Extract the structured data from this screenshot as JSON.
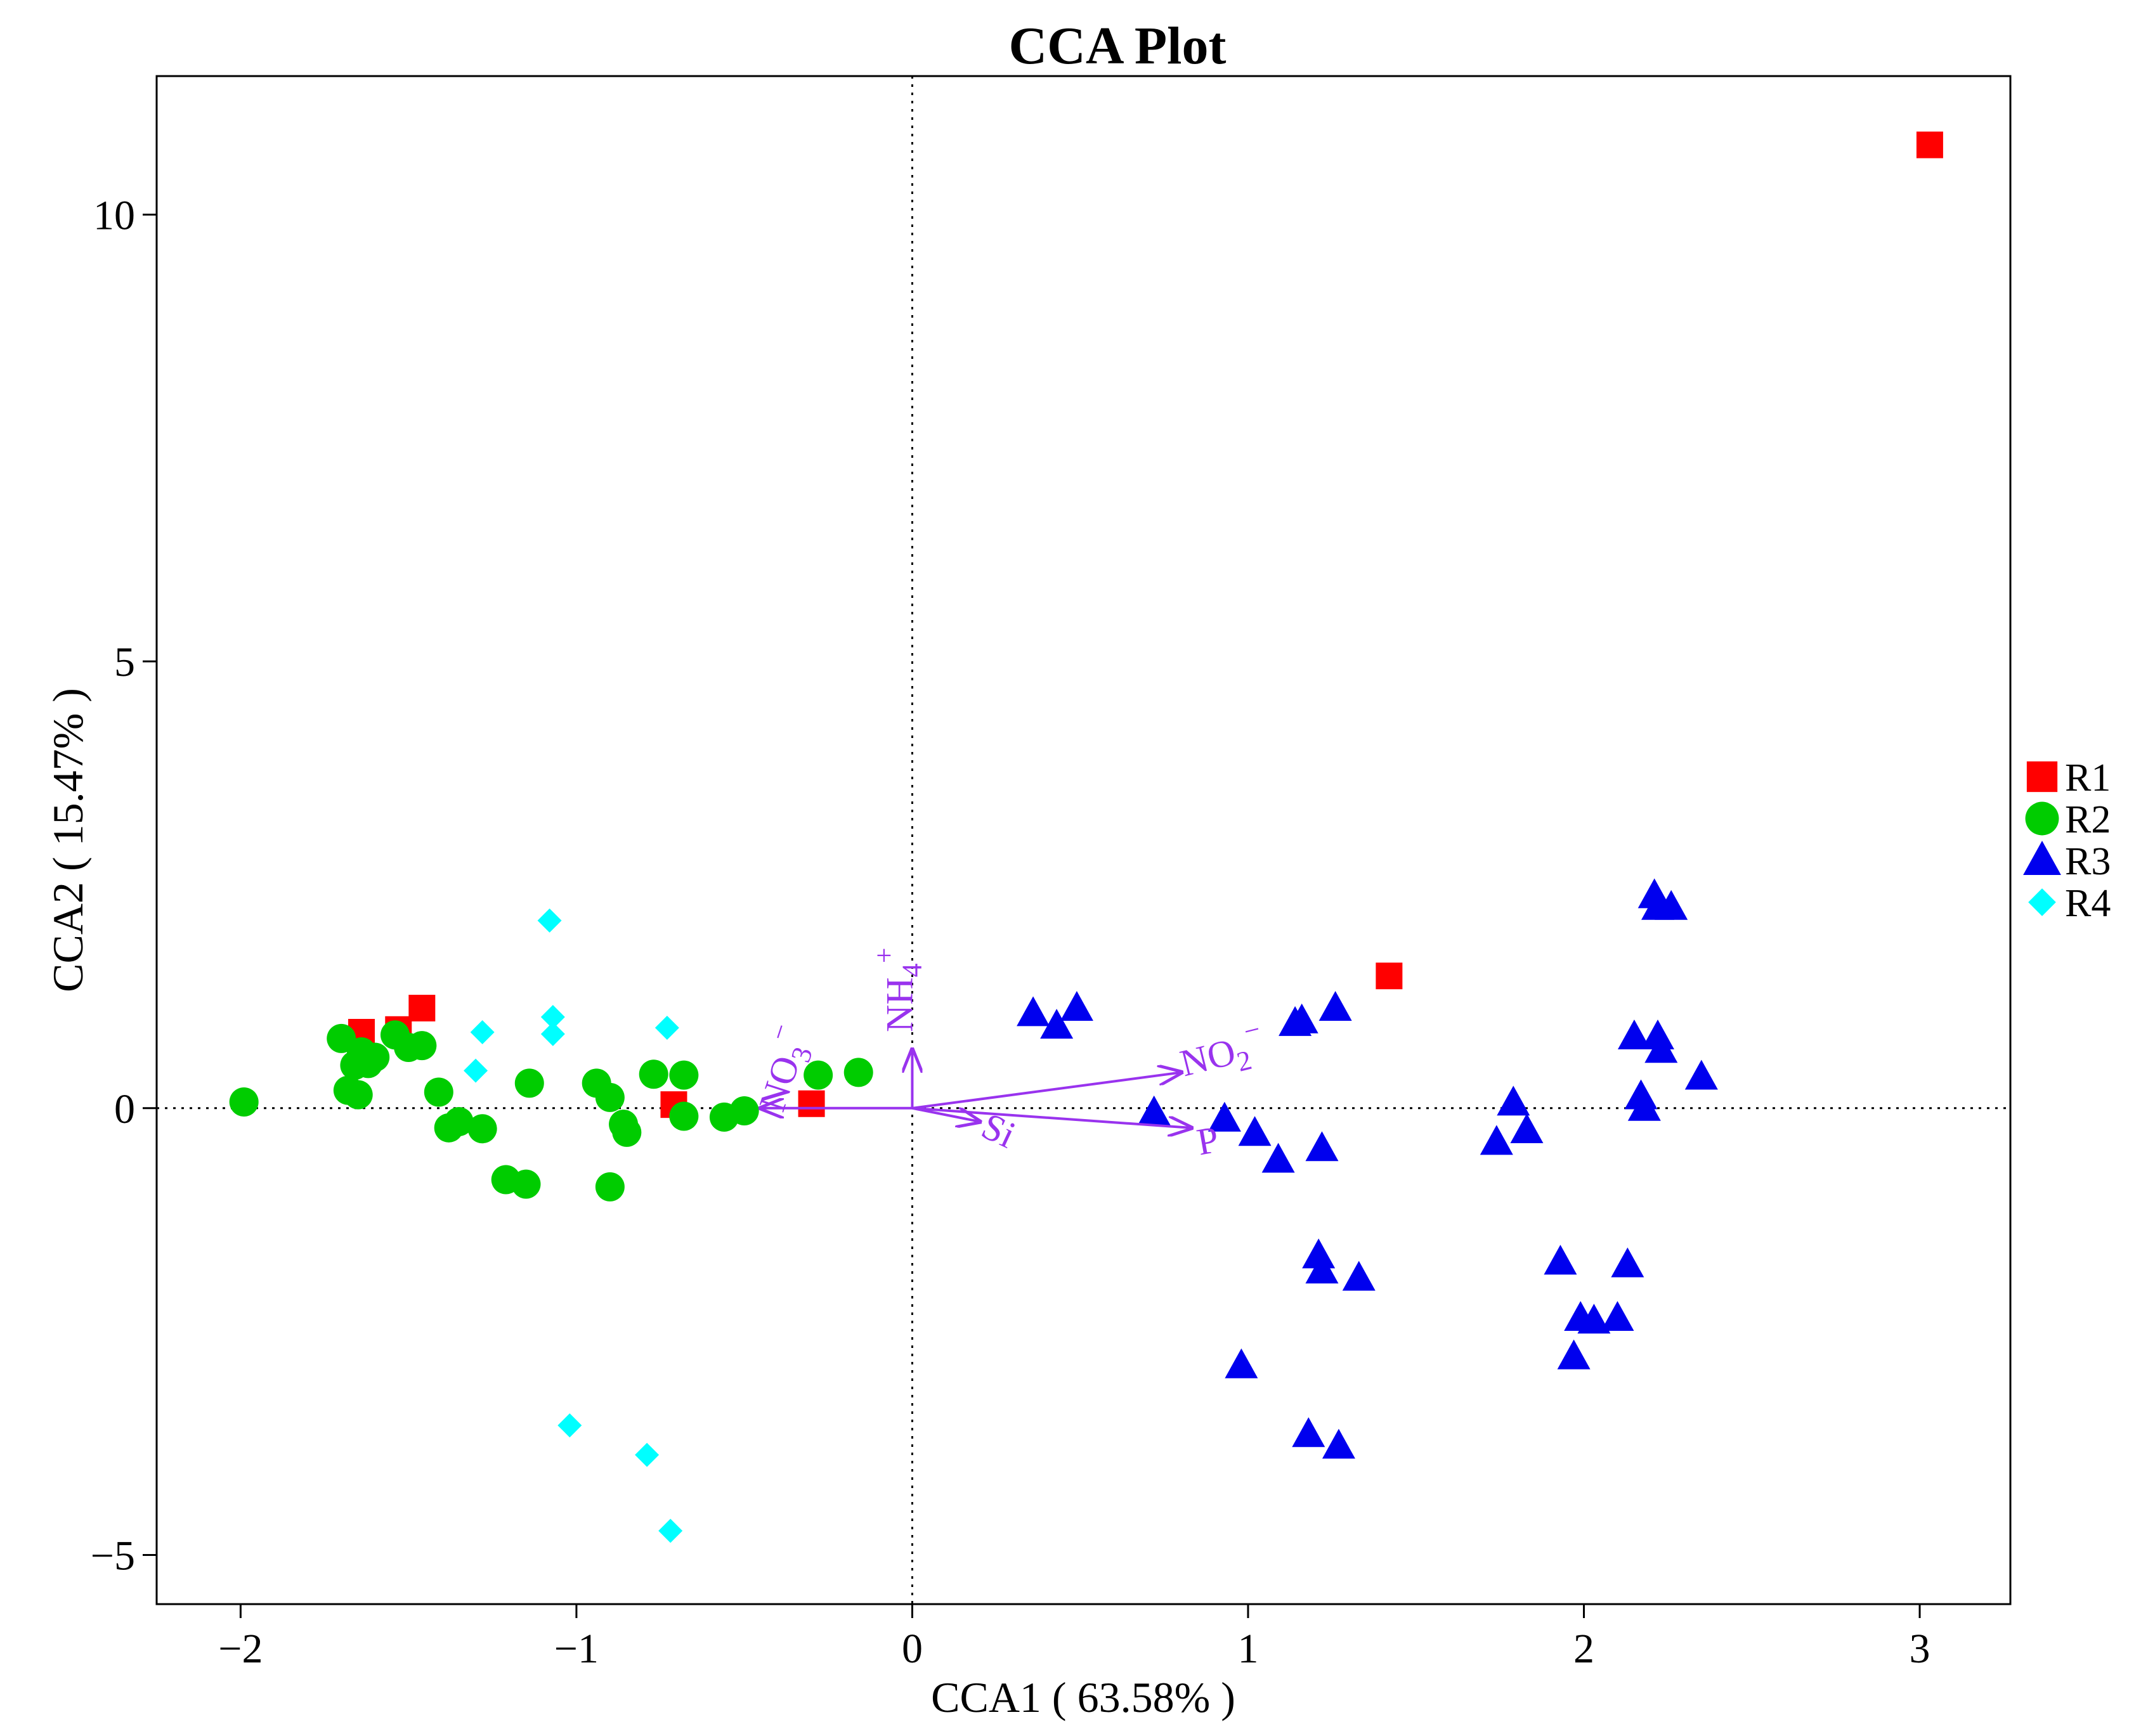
{
  "chart_data": {
    "type": "scatter",
    "title": "CCA Plot",
    "xlabel": "CCA1 ( 63.58% )",
    "ylabel": "CCA2 ( 15.47% )",
    "xlim": [
      -2.25,
      3.27
    ],
    "ylim": [
      -5.55,
      11.55
    ],
    "xticks": [
      -2,
      -1,
      0,
      1,
      2,
      3
    ],
    "xtick_labels": [
      "−2",
      "−1",
      "0",
      "1",
      "2",
      "3"
    ],
    "yticks": [
      -5,
      0,
      5,
      10
    ],
    "ytick_labels": [
      "−5",
      "0",
      "5",
      "10"
    ],
    "reference_lines": {
      "x": 0,
      "y": 0,
      "style": "dotted"
    },
    "legend_position": "right",
    "series": [
      {
        "name": "R1",
        "marker": "square",
        "color": "#FF0000",
        "points": [
          {
            "x": -1.64,
            "y": 0.85
          },
          {
            "x": -1.53,
            "y": 0.88
          },
          {
            "x": -1.46,
            "y": 1.12
          },
          {
            "x": -0.71,
            "y": 0.04
          },
          {
            "x": -0.3,
            "y": 0.05
          },
          {
            "x": 1.42,
            "y": 1.48
          },
          {
            "x": 3.03,
            "y": 10.78
          }
        ]
      },
      {
        "name": "R2",
        "marker": "circle",
        "color": "#00CC00",
        "points": [
          {
            "x": -1.99,
            "y": 0.07
          },
          {
            "x": -1.7,
            "y": 0.78
          },
          {
            "x": -1.68,
            "y": 0.2
          },
          {
            "x": -1.66,
            "y": 0.48
          },
          {
            "x": -1.65,
            "y": 0.15
          },
          {
            "x": -1.64,
            "y": 0.63
          },
          {
            "x": -1.62,
            "y": 0.5
          },
          {
            "x": -1.6,
            "y": 0.57
          },
          {
            "x": -1.54,
            "y": 0.82
          },
          {
            "x": -1.5,
            "y": 0.68
          },
          {
            "x": -1.46,
            "y": 0.7
          },
          {
            "x": -1.41,
            "y": 0.18
          },
          {
            "x": -1.38,
            "y": -0.22
          },
          {
            "x": -1.35,
            "y": -0.15
          },
          {
            "x": -1.28,
            "y": -0.23
          },
          {
            "x": -1.21,
            "y": -0.8
          },
          {
            "x": -1.15,
            "y": -0.85
          },
          {
            "x": -1.14,
            "y": 0.28
          },
          {
            "x": -0.94,
            "y": 0.28
          },
          {
            "x": -0.9,
            "y": 0.12
          },
          {
            "x": -0.9,
            "y": -0.88
          },
          {
            "x": -0.86,
            "y": -0.18
          },
          {
            "x": -0.85,
            "y": -0.27
          },
          {
            "x": -0.77,
            "y": 0.38
          },
          {
            "x": -0.68,
            "y": 0.37
          },
          {
            "x": -0.68,
            "y": -0.09
          },
          {
            "x": -0.56,
            "y": -0.1
          },
          {
            "x": -0.5,
            "y": -0.03
          },
          {
            "x": -0.28,
            "y": 0.37
          },
          {
            "x": -0.16,
            "y": 0.4
          }
        ]
      },
      {
        "name": "R3",
        "marker": "triangle",
        "color": "#0000EE",
        "points": [
          {
            "x": 0.36,
            "y": 1.06
          },
          {
            "x": 0.43,
            "y": 0.92
          },
          {
            "x": 0.49,
            "y": 1.12
          },
          {
            "x": 0.72,
            "y": -0.05
          },
          {
            "x": 0.93,
            "y": -0.12
          },
          {
            "x": 0.98,
            "y": -2.88
          },
          {
            "x": 1.02,
            "y": -0.28
          },
          {
            "x": 1.09,
            "y": -0.58
          },
          {
            "x": 1.14,
            "y": 0.95
          },
          {
            "x": 1.16,
            "y": 0.98
          },
          {
            "x": 1.18,
            "y": -3.65
          },
          {
            "x": 1.21,
            "y": -1.65
          },
          {
            "x": 1.22,
            "y": -1.82
          },
          {
            "x": 1.22,
            "y": -0.45
          },
          {
            "x": 1.26,
            "y": 1.12
          },
          {
            "x": 1.27,
            "y": -3.78
          },
          {
            "x": 1.33,
            "y": -1.9
          },
          {
            "x": 1.74,
            "y": -0.38
          },
          {
            "x": 1.79,
            "y": 0.06
          },
          {
            "x": 1.83,
            "y": -0.25
          },
          {
            "x": 1.93,
            "y": -1.72
          },
          {
            "x": 1.97,
            "y": -2.78
          },
          {
            "x": 1.99,
            "y": -2.35
          },
          {
            "x": 2.03,
            "y": -2.38
          },
          {
            "x": 2.1,
            "y": -2.35
          },
          {
            "x": 2.13,
            "y": -1.75
          },
          {
            "x": 2.15,
            "y": 0.8
          },
          {
            "x": 2.17,
            "y": 0.13
          },
          {
            "x": 2.18,
            "y": 0.0
          },
          {
            "x": 2.21,
            "y": 2.38
          },
          {
            "x": 2.22,
            "y": 2.25
          },
          {
            "x": 2.22,
            "y": 0.8
          },
          {
            "x": 2.23,
            "y": 0.65
          },
          {
            "x": 2.26,
            "y": 2.25
          },
          {
            "x": 2.35,
            "y": 0.35
          }
        ]
      },
      {
        "name": "R4",
        "marker": "diamond",
        "color": "#00FFFF",
        "points": [
          {
            "x": -1.3,
            "y": 0.42
          },
          {
            "x": -1.28,
            "y": 0.85
          },
          {
            "x": -1.08,
            "y": 2.1
          },
          {
            "x": -1.07,
            "y": 1.02
          },
          {
            "x": -1.07,
            "y": 0.83
          },
          {
            "x": -1.02,
            "y": -3.55
          },
          {
            "x": -0.79,
            "y": -3.88
          },
          {
            "x": -0.73,
            "y": 0.9
          },
          {
            "x": -0.72,
            "y": -4.73
          }
        ]
      }
    ],
    "vectors": [
      {
        "name": "NH4+",
        "label_main": "NH",
        "label_sub": "4",
        "label_sup": "+",
        "x": 0.0,
        "y": 0.65
      },
      {
        "name": "NO2-",
        "label_main": "NO",
        "label_sub": "2",
        "label_sup": "−",
        "x": 0.8,
        "y": 0.4
      },
      {
        "name": "P",
        "label_main": "P",
        "label_sub": "",
        "label_sup": "",
        "x": 0.83,
        "y": -0.22
      },
      {
        "name": "Si",
        "label_main": "Si",
        "label_sub": "",
        "label_sup": "",
        "x": 0.2,
        "y": -0.15
      },
      {
        "name": "NO3-",
        "label_main": "NO",
        "label_sub": "3",
        "label_sup": "−",
        "x": -0.45,
        "y": 0.0
      }
    ],
    "vector_color": "#9933EE"
  }
}
